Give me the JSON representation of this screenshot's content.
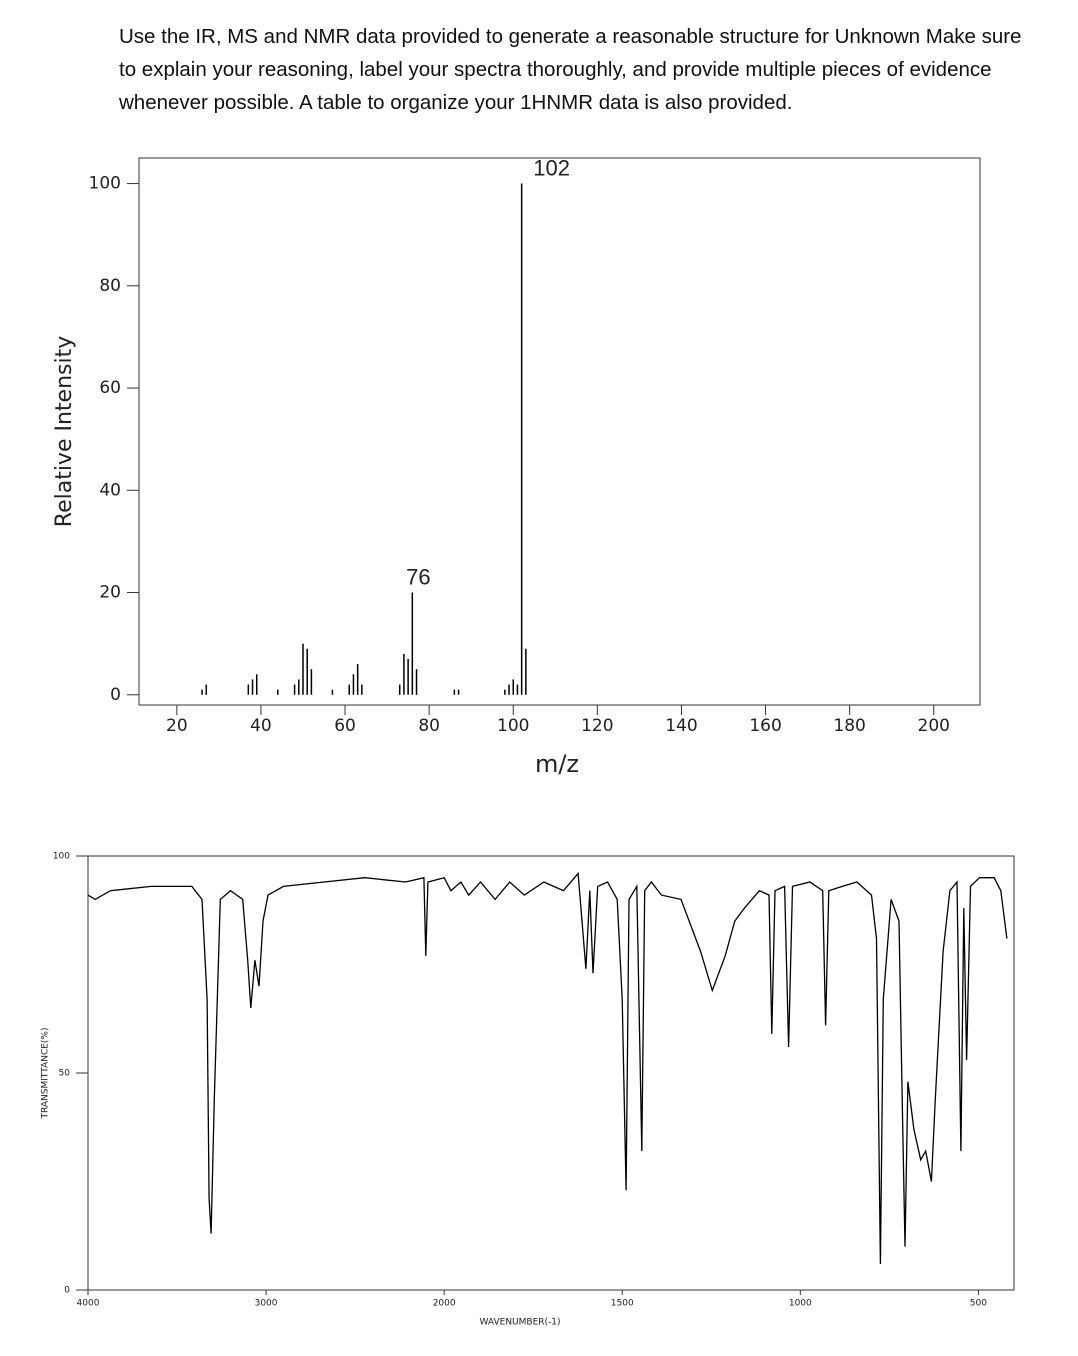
{
  "instructions": "Use the IR, MS and NMR data provided to generate a reasonable structure for Unknown Make sure to explain your reasoning, label your spectra thoroughly, and provide multiple pieces of evidence whenever possible. A table to organize your 1HNMR data is also provided.",
  "chart_data": [
    {
      "type": "bar",
      "x_label": "m/z",
      "y_label": "Relative Intensity",
      "x": [
        26,
        27,
        37,
        38,
        39,
        44,
        48,
        49,
        50,
        51,
        52,
        57,
        61,
        62,
        63,
        64,
        73,
        74,
        75,
        76,
        77,
        86,
        87,
        98,
        99,
        100,
        101,
        102,
        103
      ],
      "values": [
        1,
        2,
        2,
        3,
        4,
        1,
        2,
        3,
        10,
        9,
        5,
        1,
        2,
        4,
        6,
        2,
        2,
        8,
        7,
        20,
        5,
        1,
        1,
        1,
        2,
        3,
        2,
        100,
        9
      ],
      "color": "#000000",
      "xlim": [
        11,
        211
      ],
      "xticks": [
        20,
        40,
        60,
        80,
        100,
        120,
        140,
        160,
        180,
        200
      ],
      "ylim": [
        -2,
        105
      ],
      "yticks": [
        0,
        20,
        40,
        60,
        80,
        100
      ],
      "annotations": [
        {
          "text": "102",
          "x": 102
        },
        {
          "text": "76",
          "x": 76
        }
      ]
    },
    {
      "type": "line",
      "x_label": "WAVENUMBER(-1)",
      "y_label": "TRANSMITTANCE(%)",
      "color": "#000000",
      "xlim": [
        4000,
        400
      ],
      "xticks": [
        4000,
        3000,
        2000,
        1500,
        1000,
        500
      ],
      "xscale": {
        "break": 2000,
        "ratio": 2
      },
      "ylim": [
        0,
        100
      ],
      "yticks": [
        0,
        50,
        100
      ],
      "x": [
        4000,
        3960,
        3874,
        3646,
        3417,
        3360,
        3331,
        3320,
        3309,
        3291,
        3257,
        3200,
        3131,
        3103,
        3086,
        3063,
        3040,
        3017,
        2989,
        2903,
        2674,
        2446,
        2217,
        2114,
        2103,
        2091,
        2000,
        1981,
        1953,
        1931,
        1898,
        1857,
        1816,
        1775,
        1720,
        1665,
        1624,
        1602,
        1591,
        1582,
        1569,
        1541,
        1514,
        1500,
        1489,
        1481,
        1459,
        1445,
        1437,
        1418,
        1390,
        1335,
        1280,
        1247,
        1211,
        1184,
        1157,
        1115,
        1088,
        1080,
        1071,
        1044,
        1033,
        1022,
        973,
        937,
        929,
        920,
        882,
        841,
        800,
        786,
        775,
        767,
        745,
        723,
        714,
        706,
        698,
        681,
        662,
        648,
        632,
        621,
        599,
        580,
        560,
        549,
        541,
        533,
        522,
        497,
        456,
        437,
        420
      ],
      "values": [
        91,
        90,
        92,
        93,
        93,
        90,
        67,
        21,
        13,
        44,
        90,
        92,
        90,
        76,
        65,
        76,
        70,
        85,
        91,
        93,
        94,
        95,
        94,
        95,
        77,
        94,
        95,
        92,
        94,
        91,
        94,
        90,
        94,
        91,
        94,
        92,
        96,
        74,
        92,
        73,
        93,
        94,
        90,
        67,
        23,
        90,
        93,
        32,
        92,
        94,
        91,
        90,
        78,
        69,
        77,
        85,
        88,
        92,
        91,
        59,
        92,
        93,
        56,
        93,
        94,
        92,
        61,
        92,
        93,
        94,
        91,
        81,
        6,
        67,
        90,
        85,
        44,
        10,
        48,
        37,
        30,
        32,
        25,
        44,
        78,
        92,
        94,
        32,
        88,
        53,
        93,
        95,
        95,
        92,
        81
      ]
    }
  ]
}
